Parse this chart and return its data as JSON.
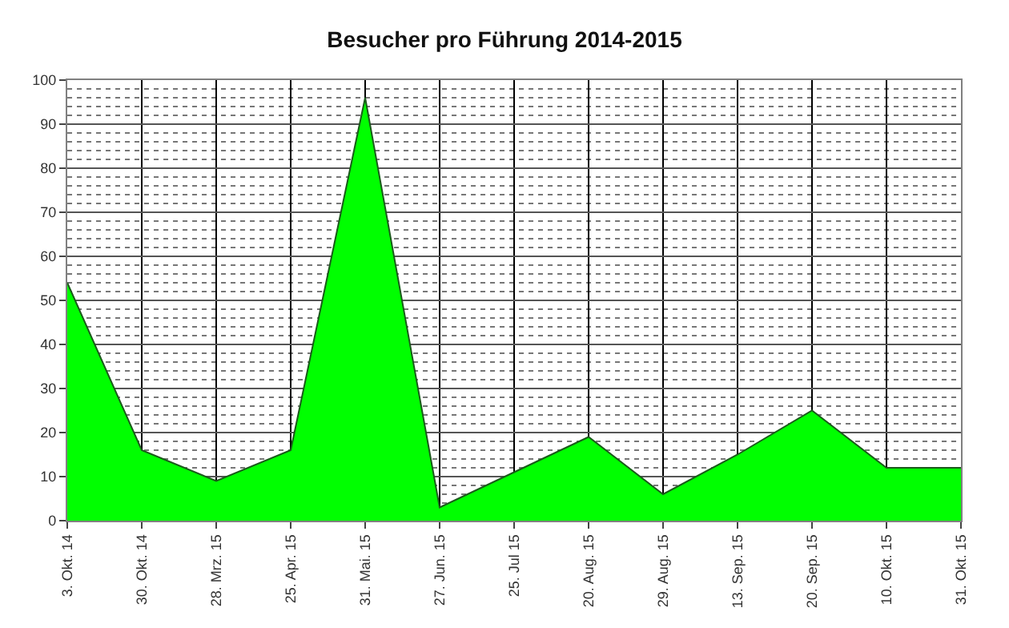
{
  "chart_data": {
    "type": "area",
    "title": "Besucher pro Führung 2014-2015",
    "categories": [
      "3. Okt. 14",
      "30. Okt. 14",
      "28. Mrz. 15",
      "25. Apr. 15",
      "31. Mai. 15",
      "27. Jun. 15",
      "25. Jul 15",
      "20. Aug. 15",
      "29. Aug. 15",
      "13. Sep. 15",
      "20. Sep. 15",
      "10. Okt. 15",
      "31. Okt. 15"
    ],
    "values": [
      54,
      16,
      9,
      16,
      96,
      3,
      11,
      19,
      6,
      15,
      25,
      12,
      12
    ],
    "color": "#00ff00",
    "ylim": [
      0,
      100
    ],
    "yticks": [
      0,
      10,
      20,
      30,
      40,
      50,
      60,
      70,
      80,
      90,
      100
    ],
    "grid": true
  }
}
